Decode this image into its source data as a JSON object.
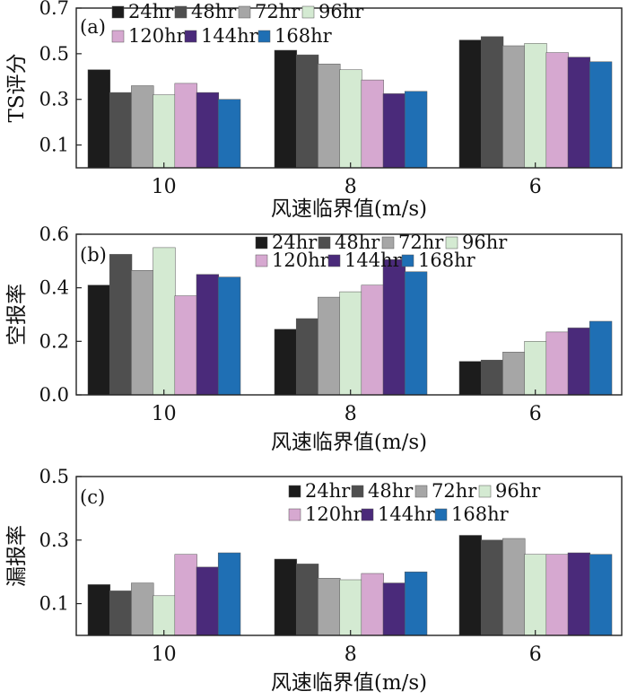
{
  "colors": {
    "24hr": "#1c1c1c",
    "48hr": "#4f4f4f",
    "72hr": "#a6a6a6",
    "96hr": "#d4ead2",
    "120hr": "#d6a8d0",
    "144hr": "#4a2a7a",
    "168hr": "#1f6fb4"
  },
  "chart_data": [
    {
      "type": "bar",
      "panel_label": "(a)",
      "ylabel": "TS评分",
      "xlabel": "风速临界值(m/s)",
      "categories": [
        "10",
        "8",
        "6"
      ],
      "ylim": [
        0.0,
        0.7
      ],
      "yticks": [
        "0.1",
        "0.3",
        "0.5",
        "0.7"
      ],
      "legend": "top-left",
      "series": [
        {
          "name": "24hr",
          "values": [
            0.43,
            0.515,
            0.56
          ]
        },
        {
          "name": "48hr",
          "values": [
            0.33,
            0.495,
            0.575
          ]
        },
        {
          "name": "72hr",
          "values": [
            0.36,
            0.455,
            0.535
          ]
        },
        {
          "name": "96hr",
          "values": [
            0.32,
            0.43,
            0.545
          ]
        },
        {
          "name": "120hr",
          "values": [
            0.37,
            0.385,
            0.505
          ]
        },
        {
          "name": "144hr",
          "values": [
            0.33,
            0.325,
            0.485
          ]
        },
        {
          "name": "168hr",
          "values": [
            0.3,
            0.335,
            0.465
          ]
        }
      ]
    },
    {
      "type": "bar",
      "panel_label": "(b)",
      "ylabel": "空报率",
      "xlabel": "风速临界值(m/s)",
      "categories": [
        "10",
        "8",
        "6"
      ],
      "ylim": [
        0.0,
        0.6
      ],
      "yticks": [
        "0.0",
        "0.2",
        "0.4",
        "0.6"
      ],
      "legend": "top-right",
      "series": [
        {
          "name": "24hr",
          "values": [
            0.41,
            0.245,
            0.125
          ]
        },
        {
          "name": "48hr",
          "values": [
            0.525,
            0.285,
            0.13
          ]
        },
        {
          "name": "72hr",
          "values": [
            0.465,
            0.365,
            0.16
          ]
        },
        {
          "name": "96hr",
          "values": [
            0.55,
            0.385,
            0.2
          ]
        },
        {
          "name": "120hr",
          "values": [
            0.37,
            0.41,
            0.235
          ]
        },
        {
          "name": "144hr",
          "values": [
            0.45,
            0.505,
            0.25
          ]
        },
        {
          "name": "168hr",
          "values": [
            0.44,
            0.46,
            0.275
          ]
        }
      ]
    },
    {
      "type": "bar",
      "panel_label": "(c)",
      "ylabel": "漏报率",
      "xlabel": "风速临界值(m/s)",
      "categories": [
        "10",
        "8",
        "6"
      ],
      "ylim": [
        0.0,
        0.5
      ],
      "yticks": [
        "0.1",
        "0.3",
        "0.5"
      ],
      "legend": "top-right",
      "series": [
        {
          "name": "24hr",
          "values": [
            0.16,
            0.24,
            0.315
          ]
        },
        {
          "name": "48hr",
          "values": [
            0.14,
            0.225,
            0.3
          ]
        },
        {
          "name": "72hr",
          "values": [
            0.165,
            0.18,
            0.305
          ]
        },
        {
          "name": "96hr",
          "values": [
            0.125,
            0.175,
            0.255
          ]
        },
        {
          "name": "120hr",
          "values": [
            0.255,
            0.195,
            0.255
          ]
        },
        {
          "name": "144hr",
          "values": [
            0.215,
            0.165,
            0.26
          ]
        },
        {
          "name": "168hr",
          "values": [
            0.26,
            0.2,
            0.255
          ]
        }
      ]
    }
  ]
}
